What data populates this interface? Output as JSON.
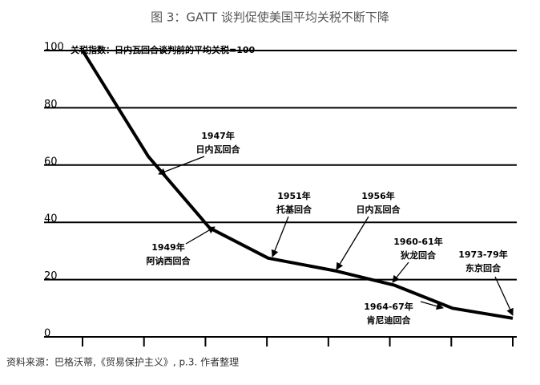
{
  "chart_data": {
    "type": "line",
    "title": "图 3：GATT 谈判促使美国平均关税不断下降",
    "y_label": "关税指数：日内瓦回合谈判前的平均关税=100",
    "source": "资料来源：巴格沃蒂,《贸易保护主义》, p.3. 作者整理",
    "x": [
      0,
      1.07,
      2.07,
      3.02,
      4.13,
      5.08,
      6.02,
      7
    ],
    "series": [
      {
        "color": "#000000",
        "values": [
          100,
          63,
          38,
          27.5,
          23,
          18,
          10,
          6.5
        ]
      }
    ],
    "xlim": [
      0,
      7
    ],
    "xticks": [
      0,
      1,
      2,
      3,
      4,
      5,
      6,
      7
    ],
    "ylim": [
      0,
      100
    ],
    "yticks": [
      0,
      20,
      40,
      60,
      80,
      100
    ],
    "grid": true,
    "annotations": [
      [
        "1947年",
        "日内瓦回合"
      ],
      [
        "1949年",
        "阿讷西回合"
      ],
      [
        "1951年",
        "托基回合"
      ],
      [
        "1956年",
        "日内瓦回合"
      ],
      [
        "1960-61年",
        "狄龙回合"
      ],
      [
        "1964-67年",
        "肯尼迪回合"
      ],
      [
        "1973-79年",
        "东京回合"
      ]
    ]
  }
}
